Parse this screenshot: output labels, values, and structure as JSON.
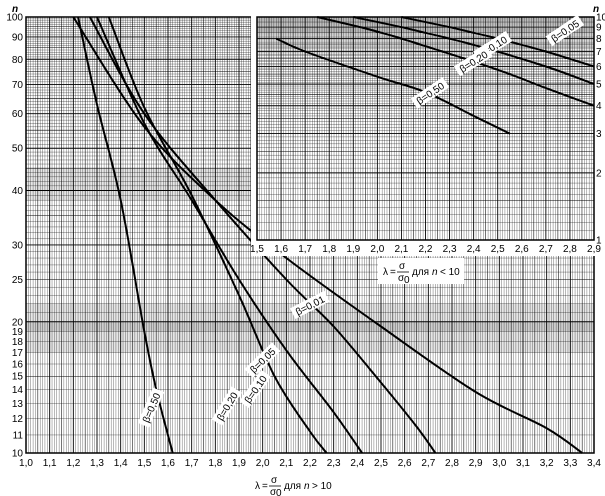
{
  "chart_data": {
    "type": "line",
    "main_chart": {
      "x_label": {
        "lambda": "λ",
        "eq": "=",
        "num": "σ",
        "den": "σ",
        "den_sub": "0",
        "for_text": "для",
        "n_var": "n",
        "cond": "> 10"
      },
      "x_ticks": [
        "1,0",
        "1,1",
        "1,2",
        "1,3",
        "1,4",
        "1,5",
        "1,6",
        "1,7",
        "1,8",
        "1,9",
        "2,0",
        "2,1",
        "2,2",
        "2,3",
        "2,4",
        "2,5",
        "2,6",
        "2,7",
        "2,8",
        "2,9",
        "3,0",
        "3,1",
        "3,2",
        "3,3",
        "3,4"
      ],
      "xlim": [
        1.0,
        3.4
      ],
      "y_axis_letter": "n",
      "y_scale": "log",
      "ylim": [
        10,
        100
      ],
      "y_ticks": [
        "10",
        "11",
        "12",
        "13",
        "14",
        "15",
        "16",
        "17",
        "18",
        "19",
        "20",
        "25",
        "30",
        "40",
        "50",
        "60",
        "70",
        "80",
        "90",
        "100"
      ],
      "series": [
        {
          "label": "β=0,01",
          "points": [
            [
              1.2,
              100
            ],
            [
              1.5,
              56
            ],
            [
              1.8,
              38
            ],
            [
              2.1,
              28
            ],
            [
              2.5,
              19.5
            ],
            [
              2.9,
              13.8
            ],
            [
              3.2,
              11.4
            ],
            [
              3.35,
              10
            ]
          ]
        },
        {
          "label": "β=0,05",
          "points": [
            [
              1.27,
              100
            ],
            [
              1.5,
              60
            ],
            [
              1.8,
              38
            ],
            [
              2.1,
              25
            ],
            [
              2.3,
              19.5
            ],
            [
              2.5,
              14.5
            ],
            [
              2.65,
              11.5
            ],
            [
              2.73,
              10
            ]
          ]
        },
        {
          "label": "β=0,10",
          "points": [
            [
              1.3,
              100
            ],
            [
              1.5,
              57
            ],
            [
              1.7,
              38
            ],
            [
              1.9,
              25
            ],
            [
              2.1,
              17.2
            ],
            [
              2.3,
              12.4
            ],
            [
              2.42,
              10
            ]
          ]
        },
        {
          "label": "β=0,20",
          "points": [
            [
              1.35,
              100
            ],
            [
              1.5,
              62
            ],
            [
              1.7,
              39
            ],
            [
              1.9,
              23
            ],
            [
              2.05,
              15
            ],
            [
              2.2,
              11.2
            ],
            [
              2.27,
              10
            ]
          ]
        },
        {
          "label": "β=0,50",
          "points": [
            [
              1.22,
              100
            ],
            [
              1.3,
              63
            ],
            [
              1.4,
              38
            ],
            [
              1.5,
              19
            ],
            [
              1.55,
              14
            ],
            [
              1.62,
              10
            ]
          ]
        }
      ]
    },
    "inset_chart": {
      "x_label": {
        "lambda": "λ",
        "eq": "=",
        "num": "σ",
        "den": "σ",
        "den_sub": "0",
        "for_text": "для",
        "n_var": "n",
        "cond": "< 10"
      },
      "x_ticks": [
        "1,5",
        "1,6",
        "1,7",
        "1,8",
        "1,9",
        "2,0",
        "2,1",
        "2,2",
        "2,3",
        "2,4",
        "2,5",
        "2,6",
        "2,7",
        "2,8",
        "2,9"
      ],
      "xlim": [
        1.5,
        2.9
      ],
      "y_axis_letter": "n",
      "y_scale": "log",
      "ylim": [
        1,
        10
      ],
      "y_ticks": [
        "1",
        "2",
        "3",
        "4",
        "5",
        "6",
        "7",
        "8",
        "9",
        "10"
      ],
      "series": [
        {
          "label": "β=0,05",
          "points": [
            [
              2.1,
              10
            ],
            [
              2.3,
              9
            ],
            [
              2.5,
              8
            ],
            [
              2.7,
              7
            ],
            [
              2.9,
              6
            ]
          ]
        },
        {
          "label": "β=0,10",
          "points": [
            [
              1.9,
              10
            ],
            [
              2.1,
              9
            ],
            [
              2.4,
              7.5
            ],
            [
              2.7,
              6
            ],
            [
              2.9,
              5
            ]
          ]
        },
        {
          "label": "β=0,20",
          "points": [
            [
              1.75,
              10
            ],
            [
              2.0,
              8.6
            ],
            [
              2.2,
              7.4
            ],
            [
              2.5,
              5.8
            ],
            [
              2.7,
              4.8
            ],
            [
              2.9,
              4
            ]
          ]
        },
        {
          "label": "β=0,50",
          "points": [
            [
              1.58,
              8
            ],
            [
              1.7,
              7
            ],
            [
              2.0,
              5.4
            ],
            [
              2.2,
              4.6
            ],
            [
              2.4,
              3.6
            ],
            [
              2.55,
              3
            ]
          ]
        }
      ]
    },
    "label_positions": {
      "main": [
        {
          "series": 0,
          "x": 2.2,
          "y": 21.8,
          "angle": -27
        },
        {
          "series": 1,
          "x": 2.0,
          "y": 16.3,
          "angle": -44
        },
        {
          "series": 2,
          "x": 1.97,
          "y": 14.0,
          "angle": -55
        },
        {
          "series": 3,
          "x": 1.85,
          "y": 12.8,
          "angle": -59
        },
        {
          "series": 4,
          "x": 1.53,
          "y": 12.7,
          "angle": -67
        }
      ],
      "inset": [
        {
          "series": 0,
          "x": 2.78,
          "y": 8.65,
          "angle": -34
        },
        {
          "series": 1,
          "x": 2.48,
          "y": 7.35,
          "angle": -32
        },
        {
          "series": 2,
          "x": 2.4,
          "y": 6.3,
          "angle": -32
        },
        {
          "series": 3,
          "x": 2.22,
          "y": 4.55,
          "angle": -34
        }
      ]
    }
  }
}
